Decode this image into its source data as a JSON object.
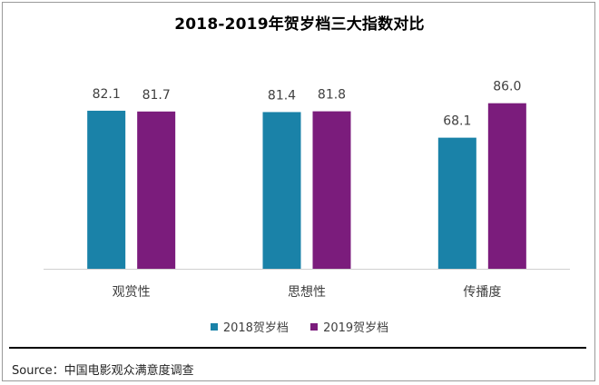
{
  "colors": {
    "series_2018": "#1a82a8",
    "series_2019": "#7b1c7c",
    "axis": "#d0d0d0"
  },
  "source": "Source：中国电影观众满意度调查",
  "chart_data": {
    "type": "bar",
    "title": "2018-2019年贺岁档三大指数对比",
    "categories": [
      "观赏性",
      "思想性",
      "传播度"
    ],
    "series": [
      {
        "name": "2018贺岁档",
        "values": [
          82.1,
          81.4,
          68.1
        ],
        "labels": [
          "82.1",
          "81.4",
          "68.1"
        ]
      },
      {
        "name": "2019贺岁档",
        "values": [
          81.7,
          81.8,
          86.0
        ],
        "labels": [
          "81.7",
          "81.8",
          "86.0"
        ]
      }
    ],
    "ylim": [
      0,
      100
    ],
    "grid": false,
    "legend": "bottom"
  }
}
